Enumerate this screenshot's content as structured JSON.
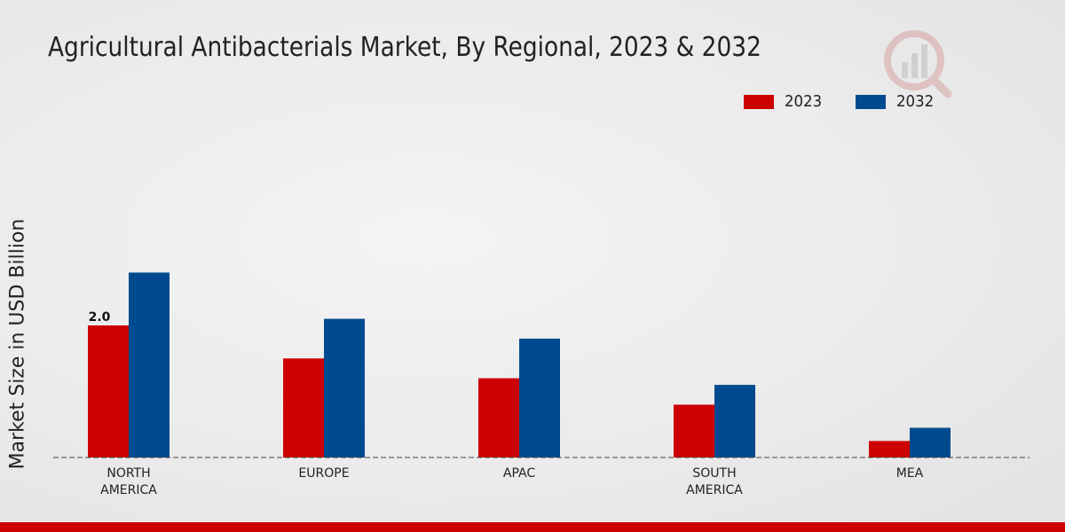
{
  "chart_data": {
    "type": "bar",
    "title": "Agricultural Antibacterials Market, By Regional, 2023 & 2032",
    "xlabel": "",
    "ylabel": "Market Size in USD Billion",
    "ylim": [
      0,
      4.5
    ],
    "categories": [
      "NORTH\nAMERICA",
      "EUROPE",
      "APAC",
      "SOUTH\nAMERICA",
      "MEA"
    ],
    "series": [
      {
        "name": "2023",
        "color": "#cc0000",
        "values": [
          2.0,
          1.5,
          1.2,
          0.8,
          0.25
        ]
      },
      {
        "name": "2032",
        "color": "#004a8f",
        "values": [
          2.8,
          2.1,
          1.8,
          1.1,
          0.45
        ]
      }
    ],
    "annotations": [
      {
        "series": 0,
        "index": 0,
        "text": "2.0"
      }
    ],
    "legend_position": "top-right",
    "grid": false
  },
  "colors": {
    "accent_red": "#cc0000",
    "accent_blue": "#004a8f",
    "bottom_bar": "#cc0000"
  }
}
